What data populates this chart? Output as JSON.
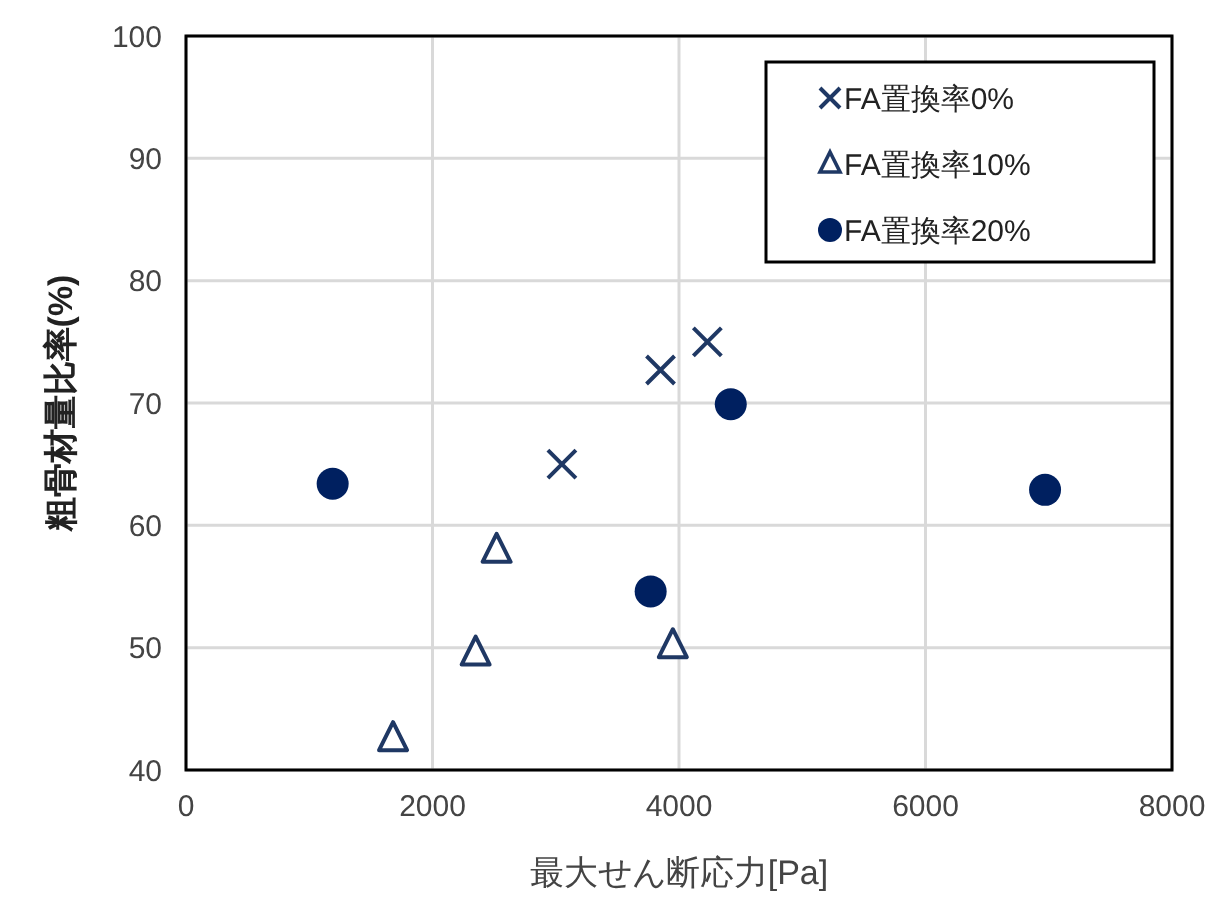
{
  "chart_data": {
    "type": "scatter",
    "xlabel": "最大せん断応力[Pa]",
    "ylabel": "粗骨材量比率(%)",
    "xlim": [
      0,
      8000
    ],
    "xticks": [
      0,
      2000,
      4000,
      6000,
      8000
    ],
    "ylim": [
      40,
      100
    ],
    "yticks": [
      40,
      50,
      60,
      70,
      80,
      90,
      100
    ],
    "grid": true,
    "legend": "top right",
    "series": [
      {
        "name": "FA置換率0%",
        "color": "#1f3864",
        "marker": "cross",
        "x": [
          3050,
          3850,
          4230
        ],
        "values": [
          65,
          72.7,
          75
        ]
      },
      {
        "name": "FA置換率10%",
        "color": "#1f3864",
        "marker": "triangle",
        "x": [
          1680,
          2350,
          2520,
          3950
        ],
        "values": [
          42.6,
          49.6,
          58,
          50.2
        ]
      },
      {
        "name": "FA置換率20%",
        "color": "#002060",
        "marker": "circle",
        "x": [
          1190,
          3770,
          4420,
          6970
        ],
        "values": [
          63.4,
          54.6,
          69.9,
          62.9
        ]
      }
    ]
  }
}
